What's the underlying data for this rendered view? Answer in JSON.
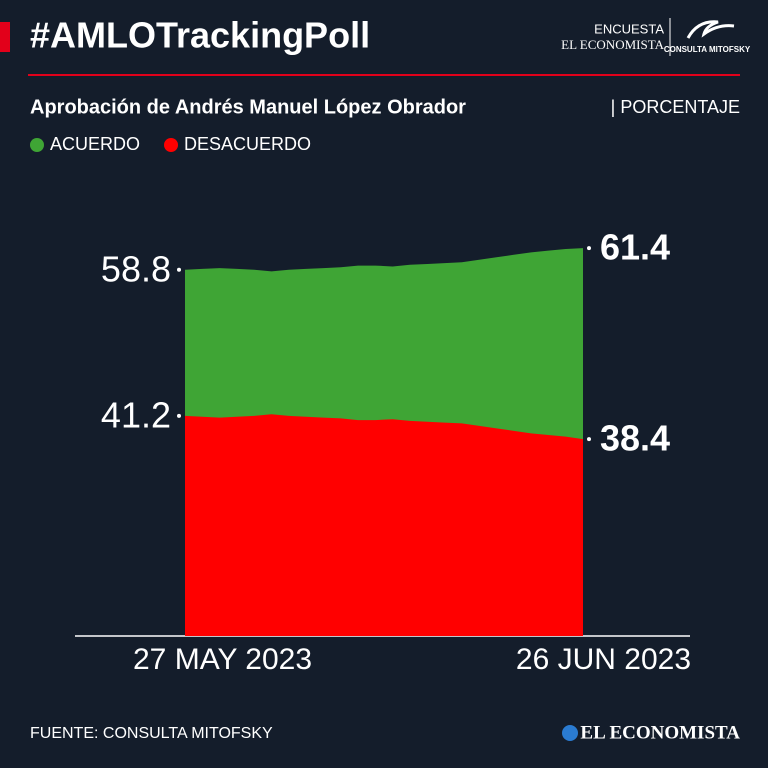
{
  "header": {
    "title": "#AMLOTrackingPoll",
    "brand_top": "ENCUESTA",
    "brand_name": "EL ECONOMISTA",
    "partner": "CONSULTA MITOFSKY"
  },
  "chart_data": {
    "type": "area",
    "title": "Aprobación de Andrés Manuel López Obrador",
    "unit": "| PORCENTAJE",
    "categories": [
      "27 MAY 2023",
      null,
      null,
      null,
      null,
      null,
      null,
      null,
      null,
      null,
      null,
      null,
      null,
      null,
      null,
      null,
      null,
      null,
      null,
      null,
      null,
      null,
      null,
      "26 JUN 2023"
    ],
    "series": [
      {
        "name": "ACUERDO",
        "color": "#3fa535",
        "values": [
          58.8,
          58.9,
          59.0,
          58.9,
          58.8,
          58.6,
          58.8,
          58.9,
          59.0,
          59.1,
          59.3,
          59.3,
          59.2,
          59.4,
          59.5,
          59.6,
          59.7,
          60.0,
          60.3,
          60.6,
          60.9,
          61.1,
          61.3,
          61.4
        ]
      },
      {
        "name": "DESACUERDO",
        "color": "#ff0000",
        "values": [
          41.2,
          41.1,
          41.0,
          41.1,
          41.2,
          41.4,
          41.2,
          41.1,
          41.0,
          40.9,
          40.7,
          40.7,
          40.8,
          40.6,
          40.5,
          40.4,
          40.3,
          40.0,
          39.7,
          39.4,
          39.1,
          38.9,
          38.7,
          38.4
        ]
      }
    ],
    "ylim": [
      14.7,
      67.2
    ],
    "yticks": [
      58.8,
      41.2
    ]
  },
  "footer": {
    "source": "FUENTE: CONSULTA MITOFSKY",
    "logo": "EL ECONOMISTA"
  }
}
